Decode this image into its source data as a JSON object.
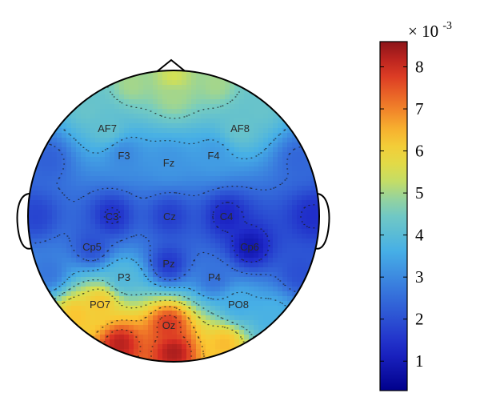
{
  "chart_data": {
    "type": "heatmap",
    "title": "",
    "colorbar": {
      "multiplier_base": "× 10",
      "multiplier_exponent": "-3",
      "ticks": [
        1,
        2,
        3,
        4,
        5,
        6,
        7,
        8
      ],
      "tick_labels": [
        "1",
        "2",
        "3",
        "4",
        "5",
        "6",
        "7",
        "8"
      ],
      "range": [
        0.3,
        8.6
      ],
      "colormap": "jet"
    },
    "electrodes": [
      {
        "name": "AF7",
        "value": 4.2
      },
      {
        "name": "AF8",
        "value": 4.3
      },
      {
        "name": "F3",
        "value": 3.0
      },
      {
        "name": "Fz",
        "value": 3.2
      },
      {
        "name": "F4",
        "value": 3.3
      },
      {
        "name": "C3",
        "value": 1.4
      },
      {
        "name": "Cz",
        "value": 1.7
      },
      {
        "name": "C4",
        "value": 1.2
      },
      {
        "name": "Cp5",
        "value": 2.0
      },
      {
        "name": "Cp6",
        "value": 0.9
      },
      {
        "name": "Pz",
        "value": 1.6
      },
      {
        "name": "P3",
        "value": 3.9
      },
      {
        "name": "P4",
        "value": 2.6
      },
      {
        "name": "PO7",
        "value": 6.2
      },
      {
        "name": "PO8",
        "value": 3.6
      },
      {
        "name": "Oz",
        "value": 7.8
      }
    ],
    "grid": false,
    "legend": "right"
  }
}
